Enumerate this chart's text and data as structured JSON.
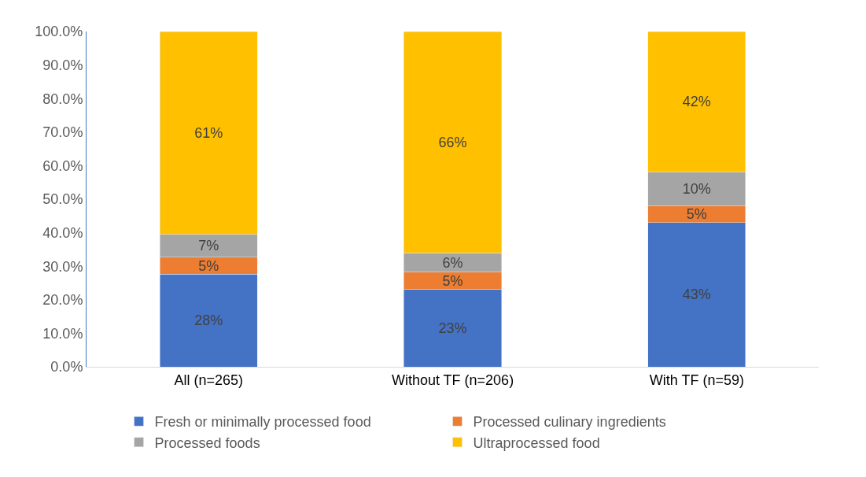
{
  "chart_data": {
    "type": "bar",
    "stacked": true,
    "categories": [
      "All (n=265)",
      "Without TF (n=206)",
      "With TF (n=59)"
    ],
    "series": [
      {
        "name": "Fresh or minimally processed food",
        "color": "#4472c4",
        "values": [
          27.6,
          23.2,
          43.0
        ],
        "value_labels": [
          "28%",
          "23%",
          "43%"
        ]
      },
      {
        "name": "Processed culinary ingredients",
        "color": "#ed7d31",
        "values": [
          5.1,
          5.0,
          5.0
        ],
        "value_labels": [
          "5%",
          "5%",
          "5%"
        ]
      },
      {
        "name": "Processed foods",
        "color": "#a5a5a5",
        "values": [
          6.8,
          5.8,
          10.0
        ],
        "value_labels": [
          "7%",
          "6%",
          "10%"
        ]
      },
      {
        "name": "Ultraprocessed food",
        "color": "#ffc000",
        "values": [
          60.5,
          66.0,
          42.0
        ],
        "value_labels": [
          "61%",
          "66%",
          "42%"
        ]
      }
    ],
    "ylim": [
      0,
      100
    ],
    "yticks": [
      {
        "value": 0,
        "label": "0.0%"
      },
      {
        "value": 10,
        "label": "10.0%"
      },
      {
        "value": 20,
        "label": "20.0%"
      },
      {
        "value": 30,
        "label": "30.0%"
      },
      {
        "value": 40,
        "label": "40.0%"
      },
      {
        "value": 50,
        "label": "50.0%"
      },
      {
        "value": 60,
        "label": "60.0%"
      },
      {
        "value": 70,
        "label": "70.0%"
      },
      {
        "value": 80,
        "label": "80.0%"
      },
      {
        "value": 90,
        "label": "90.0%"
      },
      {
        "value": 100,
        "label": "100.0%"
      }
    ],
    "legend": "bottom"
  }
}
